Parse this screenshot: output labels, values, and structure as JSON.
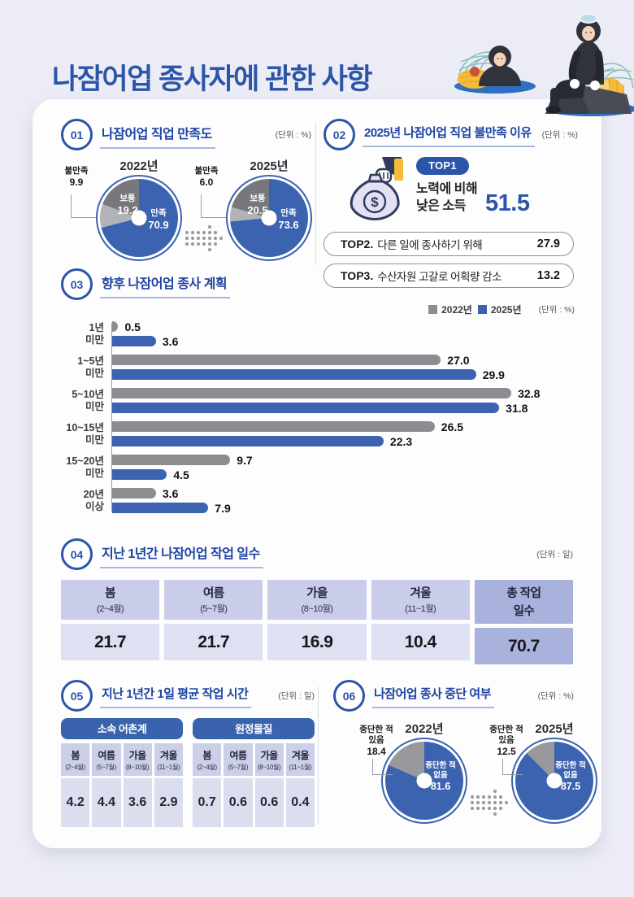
{
  "page": {
    "title": "나잠어업 종사자에 관한 사항"
  },
  "s1": {
    "no": "01",
    "title": "나잠어업 직업 만족도",
    "unit": "(단위 : %)",
    "pies": [
      {
        "year": "2022년",
        "slices": [
          {
            "label": "만족",
            "value": 70.9,
            "text": "70.9",
            "color": "#3B63AF"
          },
          {
            "label": "불만족",
            "value": 9.9,
            "text": "9.9",
            "color": "#B1B3B6"
          },
          {
            "label": "보통",
            "value": 19.2,
            "text": "19.2",
            "color": "#76787C"
          }
        ]
      },
      {
        "year": "2025년",
        "slices": [
          {
            "label": "만족",
            "value": 73.6,
            "text": "73.6",
            "color": "#3B63AF"
          },
          {
            "label": "불만족",
            "value": 6.0,
            "text": "6.0",
            "color": "#B1B3B6"
          },
          {
            "label": "보통",
            "value": 20.5,
            "text": "20.5",
            "color": "#76787C"
          }
        ]
      }
    ]
  },
  "s2": {
    "no": "02",
    "title": "2025년 나잠어업 직업 불만족 이유",
    "unit": "(단위 : %)",
    "top1": {
      "badge": "TOP1",
      "line1": "노력에 비해",
      "line2": "낮은 소득",
      "value": "51.5"
    },
    "items": [
      {
        "rank": "TOP2.",
        "label": "다른 일에 종사하기 위해",
        "value": "27.9"
      },
      {
        "rank": "TOP3.",
        "label": "수산자원 고갈로 어획량 감소",
        "value": "13.2"
      }
    ]
  },
  "s3": {
    "no": "03",
    "title": "향후 나잠어업 종사 계획",
    "unit": "(단위 : %)",
    "xmax": 38,
    "legend": [
      {
        "label": "2022년",
        "color": "#8B8D90"
      },
      {
        "label": "2025년",
        "color": "#3B63AF"
      }
    ],
    "rows": [
      {
        "l1": "1년",
        "l2": "미만",
        "v2022": "0.5",
        "v2025": "3.6"
      },
      {
        "l1": "1~5년",
        "l2": "미만",
        "v2022": "27.0",
        "v2025": "29.9"
      },
      {
        "l1": "5~10년",
        "l2": "미만",
        "v2022": "32.8",
        "v2025": "31.8"
      },
      {
        "l1": "10~15년",
        "l2": "미만",
        "v2022": "26.5",
        "v2025": "22.3"
      },
      {
        "l1": "15~20년",
        "l2": "미만",
        "v2022": "9.7",
        "v2025": "4.5"
      },
      {
        "l1": "20년",
        "l2": "이상",
        "v2022": "3.6",
        "v2025": "7.9"
      }
    ]
  },
  "s4": {
    "no": "04",
    "title": "지난 1년간 나잠어업 작업 일수",
    "unit": "(단위 : 일)",
    "cols": [
      {
        "h1": "봄",
        "h2": "(2~4월)",
        "value": "21.7"
      },
      {
        "h1": "여름",
        "h2": "(5~7월)",
        "value": "21.7"
      },
      {
        "h1": "가을",
        "h2": "(8~10월)",
        "value": "16.9"
      },
      {
        "h1": "겨울",
        "h2": "(11~1월)",
        "value": "10.4"
      },
      {
        "h1": "총 작업",
        "h2": "일수",
        "value": "70.7"
      }
    ]
  },
  "s5": {
    "no": "05",
    "title": "지난 1년간 1일 평균 작업 시간",
    "unit": "(단위 : 일)",
    "groups": [
      {
        "name": "소속 어촌계",
        "cols": [
          {
            "h1": "봄",
            "h2": "(2~4월)",
            "value": "4.2"
          },
          {
            "h1": "여름",
            "h2": "(5~7월)",
            "value": "4.4"
          },
          {
            "h1": "가을",
            "h2": "(8~10월)",
            "value": "3.6"
          },
          {
            "h1": "겨울",
            "h2": "(11~1월)",
            "value": "2.9"
          }
        ]
      },
      {
        "name": "원정물질",
        "cols": [
          {
            "h1": "봄",
            "h2": "(2~4월)",
            "value": "0.7"
          },
          {
            "h1": "여름",
            "h2": "(5~7월)",
            "value": "0.6"
          },
          {
            "h1": "가을",
            "h2": "(8~10월)",
            "value": "0.6"
          },
          {
            "h1": "겨울",
            "h2": "(11~1월)",
            "value": "0.4"
          }
        ]
      }
    ]
  },
  "s6": {
    "no": "06",
    "title": "나잠어업 종사 중단 여부",
    "unit": "(단위 : %)",
    "pies": [
      {
        "year": "2022년",
        "slices": [
          {
            "label": "중단한 적 없음",
            "l1": "중단한 적",
            "l2": "없음",
            "value": 81.6,
            "text": "81.6",
            "color": "#3B63AF"
          },
          {
            "label": "중단한 적 있음",
            "l1": "중단한 적",
            "l2": "있음",
            "value": 18.4,
            "text": "18.4",
            "color": "#97999D"
          }
        ]
      },
      {
        "year": "2025년",
        "slices": [
          {
            "label": "중단한 적 없음",
            "l1": "중단한 적",
            "l2": "없음",
            "value": 87.5,
            "text": "87.5",
            "color": "#3B63AF"
          },
          {
            "label": "중단한 적 있음",
            "l1": "중단한 적",
            "l2": "있음",
            "value": 12.5,
            "text": "12.5",
            "color": "#97999D"
          }
        ]
      }
    ]
  },
  "chart_data": [
    {
      "type": "pie",
      "title": "나잠어업 직업 만족도 - 2022년",
      "unit": "%",
      "labels": [
        "만족",
        "보통",
        "불만족"
      ],
      "values": [
        70.9,
        19.2,
        9.9
      ],
      "colors": [
        "#3B63AF",
        "#76787C",
        "#B1B3B6"
      ]
    },
    {
      "type": "pie",
      "title": "나잠어업 직업 만족도 - 2025년",
      "unit": "%",
      "labels": [
        "만족",
        "보통",
        "불만족"
      ],
      "values": [
        73.6,
        20.5,
        6.0
      ],
      "colors": [
        "#3B63AF",
        "#76787C",
        "#B1B3B6"
      ]
    },
    {
      "type": "bar",
      "title": "2025년 나잠어업 직업 불만족 이유 TOP3",
      "unit": "%",
      "categories": [
        "TOP1. 노력에 비해 낮은 소득",
        "TOP2. 다른 일에 종사하기 위해",
        "TOP3. 수산자원 고갈로 어획량 감소"
      ],
      "values": [
        51.5,
        27.9,
        13.2
      ]
    },
    {
      "type": "bar",
      "orientation": "horizontal",
      "title": "향후 나잠어업 종사 계획",
      "unit": "%",
      "categories": [
        "1년 미만",
        "1~5년 미만",
        "5~10년 미만",
        "10~15년 미만",
        "15~20년 미만",
        "20년 이상"
      ],
      "series": [
        {
          "name": "2022년",
          "values": [
            0.5,
            27.0,
            32.8,
            26.5,
            9.7,
            3.6
          ]
        },
        {
          "name": "2025년",
          "values": [
            3.6,
            29.9,
            31.8,
            22.3,
            4.5,
            7.9
          ]
        }
      ],
      "xlim": [
        0,
        38
      ],
      "legend_position": "top-right",
      "grid": false,
      "colors": {
        "2022년": "#8B8D90",
        "2025년": "#3B63AF"
      }
    },
    {
      "type": "table",
      "title": "지난 1년간 나잠어업 작업 일수",
      "unit": "일",
      "columns": [
        "봄(2~4월)",
        "여름(5~7월)",
        "가을(8~10월)",
        "겨울(11~1월)",
        "총 작업 일수"
      ],
      "values": [
        21.7,
        21.7,
        16.9,
        10.4,
        70.7
      ]
    },
    {
      "type": "table",
      "title": "지난 1년간 1일 평균 작업 시간",
      "unit": "일",
      "groups": [
        {
          "name": "소속 어촌계",
          "columns": [
            "봄(2~4월)",
            "여름(5~7월)",
            "가을(8~10월)",
            "겨울(11~1월)"
          ],
          "values": [
            4.2,
            4.4,
            3.6,
            2.9
          ]
        },
        {
          "name": "원정물질",
          "columns": [
            "봄(2~4월)",
            "여름(5~7월)",
            "가을(8~10월)",
            "겨울(11~1월)"
          ],
          "values": [
            0.7,
            0.6,
            0.6,
            0.4
          ]
        }
      ]
    },
    {
      "type": "pie",
      "title": "나잠어업 종사 중단 여부 - 2022년",
      "unit": "%",
      "labels": [
        "중단한 적 없음",
        "중단한 적 있음"
      ],
      "values": [
        81.6,
        18.4
      ],
      "colors": [
        "#3B63AF",
        "#97999D"
      ]
    },
    {
      "type": "pie",
      "title": "나잠어업 종사 중단 여부 - 2025년",
      "unit": "%",
      "labels": [
        "중단한 적 없음",
        "중단한 적 있음"
      ],
      "values": [
        87.5,
        12.5
      ],
      "colors": [
        "#3B63AF",
        "#97999D"
      ]
    }
  ]
}
